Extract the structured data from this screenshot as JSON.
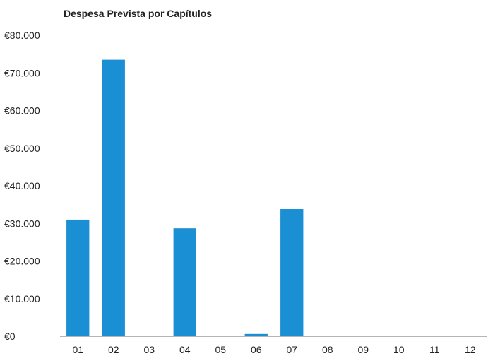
{
  "chart_data": {
    "type": "bar",
    "title": "Despesa Prevista por Capítulos",
    "xlabel": "",
    "ylabel": "",
    "categories": [
      "01",
      "02",
      "03",
      "04",
      "05",
      "06",
      "07",
      "08",
      "09",
      "10",
      "11",
      "12"
    ],
    "values": [
      31000,
      73500,
      0,
      28700,
      0,
      600,
      33800,
      0,
      0,
      0,
      0,
      0
    ],
    "ylim": [
      0,
      80000
    ],
    "y_ticks": [
      0,
      10000,
      20000,
      30000,
      40000,
      50000,
      60000,
      70000,
      80000
    ],
    "y_tick_labels": [
      "€0",
      "€10.000",
      "€20.000",
      "€30.000",
      "€40.000",
      "€50.000",
      "€60.000",
      "€70.000",
      "€80.000"
    ],
    "grid": false,
    "legend": "none",
    "colors": {
      "bar": "#1a8fd4",
      "text": "#222222",
      "axis": "#b5b5b5"
    }
  }
}
